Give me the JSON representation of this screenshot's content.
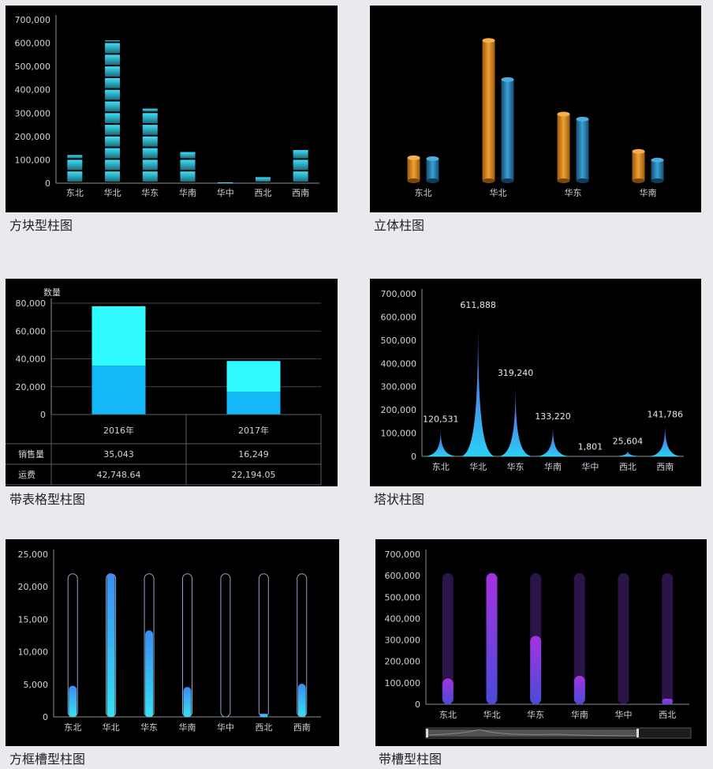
{
  "regions": [
    "东北",
    "华北",
    "华东",
    "华南",
    "华中",
    "西北",
    "西南"
  ],
  "captions": {
    "block": "方块型柱图",
    "cylinder": "立体柱图",
    "table": "带表格型柱图",
    "tower": "塔状柱图",
    "frame": "方框槽型柱图",
    "groove": "带槽型柱图"
  },
  "colors": {
    "cyan": "#33d4f0",
    "orange": "#e8952a",
    "blue": "#2e8fc4",
    "table_light": "#2ffaff",
    "table_dark": "#14b8f6",
    "purple": "#9b30e0",
    "violet_bg": "#2a1448"
  },
  "chart_data": [
    {
      "id": "block",
      "type": "bar",
      "title": "方块型柱图",
      "categories": [
        "东北",
        "华北",
        "华东",
        "华南",
        "华中",
        "西北",
        "西南"
      ],
      "values": [
        120531,
        611888,
        319240,
        133220,
        1801,
        25604,
        141786
      ],
      "ylim": [
        0,
        700000
      ],
      "yticks": [
        "0",
        "100,000",
        "200,000",
        "300,000",
        "400,000",
        "500,000",
        "600,000",
        "700,000"
      ]
    },
    {
      "id": "cylinder",
      "type": "bar",
      "title": "立体柱图",
      "categories": [
        "东北",
        "华北",
        "华东",
        "华南"
      ],
      "series": [
        {
          "values": [
            100000,
            610000,
            290000,
            128000
          ]
        },
        {
          "values": [
            96000,
            440000,
            268000,
            90000
          ]
        }
      ],
      "ylim": [
        0,
        700000
      ]
    },
    {
      "id": "table",
      "type": "bar",
      "title": "带表格型柱图",
      "ylabel": "数量",
      "categories": [
        "2016年",
        "2017年"
      ],
      "series": [
        {
          "name": "销售量",
          "values": [
            35043,
            16249
          ]
        },
        {
          "name": "运费",
          "values": [
            42748.64,
            22194.05
          ]
        }
      ],
      "table_values": [
        [
          "35,043",
          "16,249"
        ],
        [
          "42,748.64",
          "22,194.05"
        ]
      ],
      "ylim": [
        0,
        80000
      ],
      "yticks": [
        "0",
        "20,000",
        "40,000",
        "60,000",
        "80,000"
      ]
    },
    {
      "id": "tower",
      "type": "bar",
      "title": "塔状柱图",
      "categories": [
        "东北",
        "华北",
        "华东",
        "华南",
        "华中",
        "西北",
        "西南"
      ],
      "values": [
        120531,
        611888,
        319240,
        133220,
        1801,
        25604,
        141786
      ],
      "labels": [
        "120,531",
        "611,888",
        "319,240",
        "133,220",
        "1,801",
        "25,604",
        "141,786"
      ],
      "ylim": [
        0,
        700000
      ],
      "yticks": [
        "0",
        "100,000",
        "200,000",
        "300,000",
        "400,000",
        "500,000",
        "600,000",
        "700,000"
      ]
    },
    {
      "id": "frame",
      "type": "bar",
      "title": "方框槽型柱图",
      "categories": [
        "东北",
        "华北",
        "华东",
        "华南",
        "华中",
        "西北",
        "西南"
      ],
      "values": [
        4800,
        22000,
        13300,
        4600,
        0,
        500,
        5100
      ],
      "max": 22000,
      "ylim": [
        0,
        25000
      ],
      "yticks": [
        "0",
        "5,000",
        "10,000",
        "15,000",
        "20,000",
        "25,000"
      ]
    },
    {
      "id": "groove",
      "type": "bar",
      "title": "带槽型柱图",
      "categories": [
        "东北",
        "华北",
        "华东",
        "华南",
        "华中",
        "西北"
      ],
      "values": [
        120531,
        611888,
        319240,
        133220,
        1801,
        25604
      ],
      "max": 611888,
      "ylim": [
        0,
        700000
      ],
      "yticks": [
        "0",
        "100,000",
        "200,000",
        "300,000",
        "400,000",
        "500,000",
        "600,000",
        "700,000"
      ]
    }
  ]
}
